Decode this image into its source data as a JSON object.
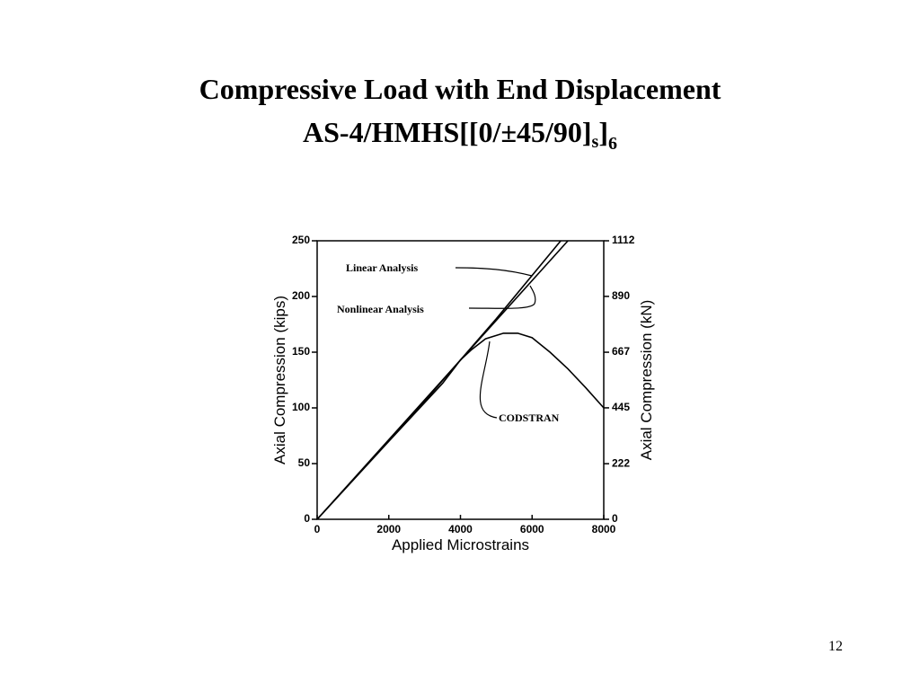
{
  "chart_data": {
    "type": "line",
    "title": "Compressive Load with End Displacement",
    "subtitle": [
      "AS-4/HMHS[[0/±45/90]",
      "s",
      "]",
      "6"
    ],
    "xlabel": "Applied  Microstrains",
    "ylabel": "Axial  Compression  (kips)",
    "y2label": "Axial  Compression  (kN)",
    "xlim": [
      0,
      8000
    ],
    "xticks": [
      0,
      2000,
      4000,
      6000,
      8000
    ],
    "ylim": [
      0,
      250
    ],
    "yticks": [
      0,
      50,
      100,
      150,
      200,
      250
    ],
    "y2lim": [
      0,
      1112
    ],
    "y2ticks": [
      0,
      222,
      445,
      667,
      890,
      1112
    ],
    "series": [
      {
        "name": "Linear Analysis",
        "color": "#000000",
        "x": [
          0,
          7000
        ],
        "values": [
          0,
          250
        ]
      },
      {
        "name": "Nonlinear Analysis",
        "color": "#000000",
        "x": [
          0,
          3000,
          5000,
          6800
        ],
        "values": [
          0,
          106,
          180,
          250
        ]
      },
      {
        "name": "CODSTRAN",
        "color": "#000000",
        "x": [
          0,
          2000,
          3500,
          4000,
          4300,
          4700,
          5200,
          5600,
          6000,
          6500,
          7000,
          7500,
          8000
        ],
        "values": [
          0,
          70,
          122,
          143,
          152,
          162,
          167,
          167,
          163,
          150,
          135,
          118,
          100
        ]
      }
    ]
  },
  "slide": {
    "page_number": "12"
  }
}
